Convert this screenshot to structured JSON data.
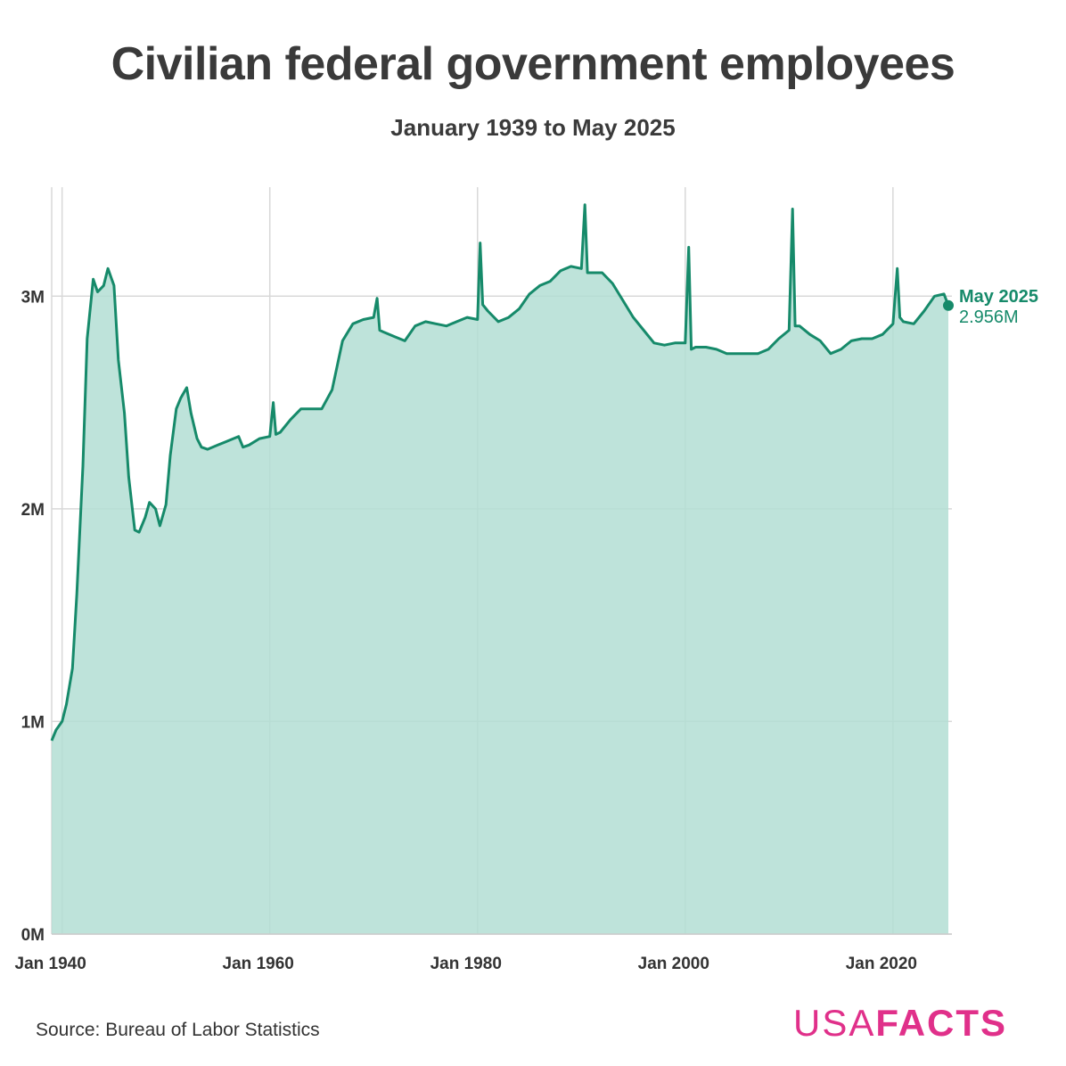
{
  "header": {
    "title": "Civilian federal government employees",
    "subtitle": "January 1939 to May 2025"
  },
  "footer": {
    "source": "Source: Bureau of Labor Statistics",
    "logo_usa": "USA",
    "logo_facts": "FACTS"
  },
  "colors": {
    "line": "#168a6a",
    "fill": "#b3ded4",
    "grid": "#d8d8d8",
    "logo": "#e0308a"
  },
  "chart_data": {
    "type": "area",
    "title": "Civilian federal government employees",
    "subtitle": "January 1939 to May 2025",
    "xlabel": "",
    "ylabel": "",
    "x_range": [
      "1939-01",
      "2025-05"
    ],
    "ylim": [
      0,
      3500000
    ],
    "grid": true,
    "x_ticks": [
      {
        "date": "1940-01",
        "label": "Jan 1940"
      },
      {
        "date": "1960-01",
        "label": "Jan 1960"
      },
      {
        "date": "1980-01",
        "label": "Jan 1980"
      },
      {
        "date": "2000-01",
        "label": "Jan 2000"
      },
      {
        "date": "2020-01",
        "label": "Jan 2020"
      }
    ],
    "y_ticks": [
      {
        "value": 0,
        "label": "0M"
      },
      {
        "value": 1000000,
        "label": "1M"
      },
      {
        "value": 2000000,
        "label": "2M"
      },
      {
        "value": 3000000,
        "label": "3M"
      }
    ],
    "series": [
      {
        "name": "",
        "points": [
          [
            "1939-01",
            910000
          ],
          [
            "1939-06",
            960000
          ],
          [
            "1940-01",
            1000000
          ],
          [
            "1940-06",
            1080000
          ],
          [
            "1941-01",
            1250000
          ],
          [
            "1941-06",
            1600000
          ],
          [
            "1942-01",
            2200000
          ],
          [
            "1942-06",
            2800000
          ],
          [
            "1943-01",
            3080000
          ],
          [
            "1943-06",
            3020000
          ],
          [
            "1944-01",
            3050000
          ],
          [
            "1944-06",
            3130000
          ],
          [
            "1945-01",
            3050000
          ],
          [
            "1945-06",
            2700000
          ],
          [
            "1946-01",
            2450000
          ],
          [
            "1946-06",
            2150000
          ],
          [
            "1947-01",
            1900000
          ],
          [
            "1947-06",
            1890000
          ],
          [
            "1948-01",
            1960000
          ],
          [
            "1948-06",
            2030000
          ],
          [
            "1949-01",
            2000000
          ],
          [
            "1949-06",
            1920000
          ],
          [
            "1950-01",
            2020000
          ],
          [
            "1950-06",
            2250000
          ],
          [
            "1951-01",
            2470000
          ],
          [
            "1951-06",
            2520000
          ],
          [
            "1952-01",
            2570000
          ],
          [
            "1952-06",
            2450000
          ],
          [
            "1953-01",
            2330000
          ],
          [
            "1953-06",
            2290000
          ],
          [
            "1954-01",
            2280000
          ],
          [
            "1955-01",
            2300000
          ],
          [
            "1956-01",
            2320000
          ],
          [
            "1957-01",
            2340000
          ],
          [
            "1957-06",
            2290000
          ],
          [
            "1958-01",
            2300000
          ],
          [
            "1959-01",
            2330000
          ],
          [
            "1960-01",
            2340000
          ],
          [
            "1960-05",
            2500000
          ],
          [
            "1960-08",
            2350000
          ],
          [
            "1961-01",
            2360000
          ],
          [
            "1962-01",
            2420000
          ],
          [
            "1963-01",
            2470000
          ],
          [
            "1964-01",
            2470000
          ],
          [
            "1965-01",
            2470000
          ],
          [
            "1966-01",
            2560000
          ],
          [
            "1967-01",
            2790000
          ],
          [
            "1968-01",
            2870000
          ],
          [
            "1969-01",
            2890000
          ],
          [
            "1970-01",
            2900000
          ],
          [
            "1970-05",
            2990000
          ],
          [
            "1970-08",
            2840000
          ],
          [
            "1971-01",
            2830000
          ],
          [
            "1972-01",
            2810000
          ],
          [
            "1973-01",
            2790000
          ],
          [
            "1974-01",
            2860000
          ],
          [
            "1975-01",
            2880000
          ],
          [
            "1976-01",
            2870000
          ],
          [
            "1977-01",
            2860000
          ],
          [
            "1978-01",
            2880000
          ],
          [
            "1979-01",
            2900000
          ],
          [
            "1980-01",
            2890000
          ],
          [
            "1980-04",
            3250000
          ],
          [
            "1980-07",
            2960000
          ],
          [
            "1981-01",
            2930000
          ],
          [
            "1982-01",
            2880000
          ],
          [
            "1983-01",
            2900000
          ],
          [
            "1984-01",
            2940000
          ],
          [
            "1985-01",
            3010000
          ],
          [
            "1986-01",
            3050000
          ],
          [
            "1987-01",
            3070000
          ],
          [
            "1988-01",
            3120000
          ],
          [
            "1989-01",
            3140000
          ],
          [
            "1990-01",
            3130000
          ],
          [
            "1990-05",
            3430000
          ],
          [
            "1990-08",
            3110000
          ],
          [
            "1991-01",
            3110000
          ],
          [
            "1992-01",
            3110000
          ],
          [
            "1993-01",
            3060000
          ],
          [
            "1994-01",
            2980000
          ],
          [
            "1995-01",
            2900000
          ],
          [
            "1996-01",
            2840000
          ],
          [
            "1997-01",
            2780000
          ],
          [
            "1998-01",
            2770000
          ],
          [
            "1999-01",
            2780000
          ],
          [
            "2000-01",
            2780000
          ],
          [
            "2000-05",
            3230000
          ],
          [
            "2000-08",
            2750000
          ],
          [
            "2001-01",
            2760000
          ],
          [
            "2002-01",
            2760000
          ],
          [
            "2003-01",
            2750000
          ],
          [
            "2004-01",
            2730000
          ],
          [
            "2005-01",
            2730000
          ],
          [
            "2006-01",
            2730000
          ],
          [
            "2007-01",
            2730000
          ],
          [
            "2008-01",
            2750000
          ],
          [
            "2009-01",
            2800000
          ],
          [
            "2010-01",
            2840000
          ],
          [
            "2010-05",
            3410000
          ],
          [
            "2010-08",
            2860000
          ],
          [
            "2011-01",
            2860000
          ],
          [
            "2012-01",
            2820000
          ],
          [
            "2013-01",
            2790000
          ],
          [
            "2014-01",
            2730000
          ],
          [
            "2015-01",
            2750000
          ],
          [
            "2016-01",
            2790000
          ],
          [
            "2017-01",
            2800000
          ],
          [
            "2018-01",
            2800000
          ],
          [
            "2019-01",
            2820000
          ],
          [
            "2020-01",
            2870000
          ],
          [
            "2020-06",
            3130000
          ],
          [
            "2020-09",
            2900000
          ],
          [
            "2021-01",
            2880000
          ],
          [
            "2022-01",
            2870000
          ],
          [
            "2023-01",
            2930000
          ],
          [
            "2024-01",
            3000000
          ],
          [
            "2024-12",
            3010000
          ],
          [
            "2025-05",
            2956000
          ]
        ]
      }
    ],
    "annotation": {
      "date": "2025-05",
      "label": "May 2025",
      "value_label": "2.956M",
      "value": 2956000
    }
  }
}
